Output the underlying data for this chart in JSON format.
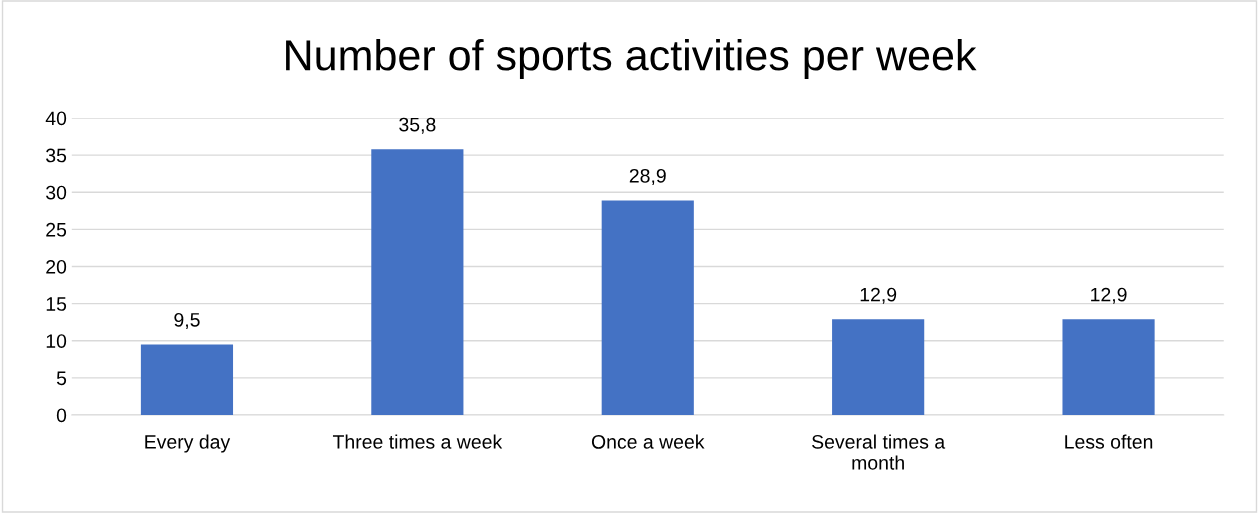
{
  "chart_data": {
    "type": "bar",
    "title": "Number of sports activities per week",
    "categories": [
      "Every day",
      "Three times a week",
      "Once a week",
      "Several times a month",
      "Less often"
    ],
    "values": [
      9.5,
      35.8,
      28.9,
      12.9,
      12.9
    ],
    "value_labels": [
      "9,5",
      "35,8",
      "28,9",
      "12,9",
      "12,9"
    ],
    "color": "#4472c4",
    "ylim": [
      0,
      40
    ],
    "yticks": [
      0,
      5,
      10,
      15,
      20,
      25,
      30,
      35,
      40
    ],
    "grid": "y"
  }
}
